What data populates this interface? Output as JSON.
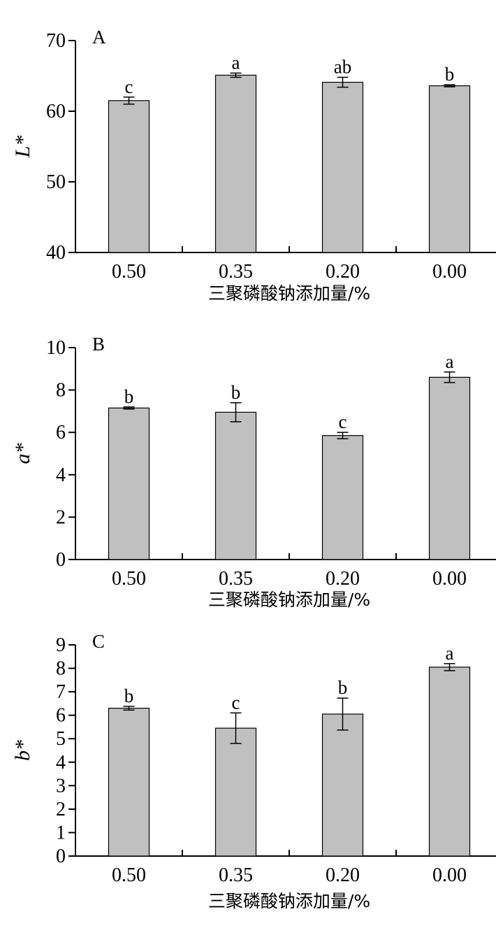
{
  "chart_data": [
    {
      "type": "bar",
      "panel_label": "A",
      "categories": [
        "0.50",
        "0.35",
        "0.20",
        "0.00"
      ],
      "values": [
        61.5,
        65.1,
        64.1,
        63.6
      ],
      "errors": [
        0.5,
        0.3,
        0.7,
        0.15
      ],
      "significance": [
        "c",
        "a",
        "ab",
        "b"
      ],
      "xlabel": "三聚磷酸钠添加量/%",
      "ylabel": "L*",
      "ylim": [
        40,
        70
      ],
      "yticks": [
        40,
        50,
        60,
        70
      ],
      "grid": false
    },
    {
      "type": "bar",
      "panel_label": "B",
      "categories": [
        "0.50",
        "0.35",
        "0.20",
        "0.00"
      ],
      "values": [
        7.15,
        6.95,
        5.85,
        8.6
      ],
      "errors": [
        0.05,
        0.45,
        0.15,
        0.25
      ],
      "significance": [
        "b",
        "b",
        "c",
        "a"
      ],
      "xlabel": "三聚磷酸钠添加量/%",
      "ylabel": "a*",
      "ylim": [
        0,
        10
      ],
      "yticks": [
        0,
        2,
        4,
        6,
        8,
        10
      ],
      "grid": false
    },
    {
      "type": "bar",
      "panel_label": "C",
      "categories": [
        "0.50",
        "0.35",
        "0.20",
        "0.00"
      ],
      "values": [
        6.3,
        5.45,
        6.05,
        8.05
      ],
      "errors": [
        0.08,
        0.65,
        0.68,
        0.15
      ],
      "significance": [
        "b",
        "c",
        "b",
        "a"
      ],
      "xlabel": "三聚磷酸钠添加量/%",
      "ylabel": "b*",
      "ylim": [
        0,
        9
      ],
      "yticks": [
        0,
        1,
        2,
        3,
        4,
        5,
        6,
        7,
        8,
        9
      ],
      "grid": false
    }
  ],
  "colors": {
    "bar_fill": "#c0c0c0",
    "bar_stroke": "#000000",
    "axis": "#000000"
  }
}
